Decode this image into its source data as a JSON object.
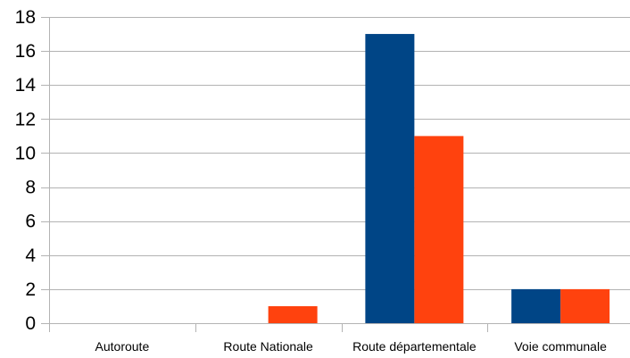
{
  "chart_data": {
    "type": "bar",
    "categories": [
      "Autoroute",
      "Route Nationale",
      "Route départementale",
      "Voie communale"
    ],
    "series": [
      {
        "values": [
          0,
          0,
          17,
          2
        ],
        "color": "#004586"
      },
      {
        "values": [
          0,
          1,
          11,
          2
        ],
        "color": "#ff420e"
      }
    ],
    "yticks": [
      0,
      2,
      4,
      6,
      8,
      10,
      12,
      14,
      16,
      18
    ],
    "ylim": [
      0,
      18
    ],
    "grid": true,
    "legend": "none"
  }
}
